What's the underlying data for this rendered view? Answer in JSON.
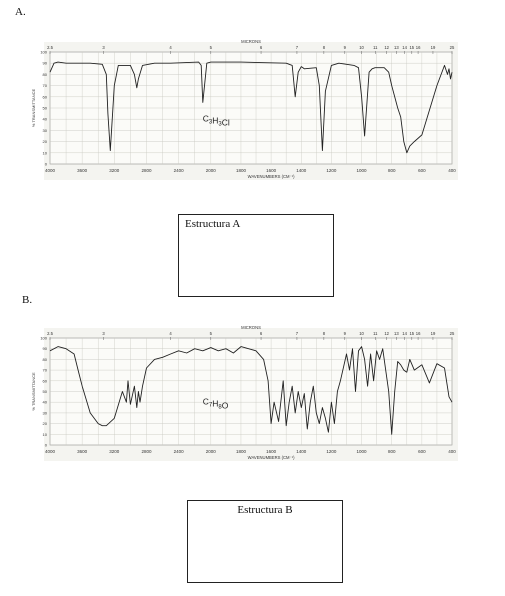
{
  "labels": {
    "a": "A.",
    "b": "B."
  },
  "boxes": {
    "a": "Estructura A",
    "b": "Estructura B"
  },
  "chart_data": [
    {
      "type": "line",
      "formula": "C3H3Cl",
      "xlabel": "WAVENUMBERS (CM⁻¹)",
      "ylabel": "% TRANSMITTANCE",
      "toplabel": "MICRONS",
      "xlim": [
        4000,
        400
      ],
      "ylim": [
        0,
        100
      ],
      "x_ticks": [
        "4000",
        "3600",
        "3200",
        "2800",
        "2400",
        "2000",
        "1800",
        "1600",
        "1400",
        "1200",
        "1000",
        "800",
        "600",
        "400"
      ],
      "micron_ticks": [
        "2.5",
        "3",
        "4",
        "5",
        "6",
        "7",
        "8",
        "9",
        "10",
        "11",
        "12",
        "13",
        "14",
        "15",
        "16",
        "19",
        "25"
      ],
      "y_ticks": [
        "100",
        "90",
        "80",
        "70",
        "60",
        "50",
        "40",
        "30",
        "20",
        "10",
        "0"
      ],
      "x": [
        4000,
        3950,
        3900,
        3800,
        3500,
        3350,
        3300,
        3280,
        3250,
        3200,
        3150,
        3000,
        2950,
        2920,
        2900,
        2850,
        2700,
        2500,
        2150,
        2120,
        2100,
        2050,
        2000,
        1800,
        1500,
        1460,
        1440,
        1420,
        1400,
        1380,
        1300,
        1280,
        1260,
        1240,
        1200,
        1150,
        1100,
        1050,
        1020,
        1000,
        980,
        950,
        930,
        910,
        850,
        820,
        800,
        780,
        760,
        740,
        720,
        700,
        680,
        650,
        600,
        500,
        450,
        430,
        420,
        410,
        400
      ],
      "y": [
        82,
        90,
        91,
        90,
        90,
        89,
        80,
        45,
        12,
        70,
        88,
        88,
        80,
        68,
        76,
        88,
        90,
        90,
        91,
        88,
        55,
        90,
        91,
        91,
        90,
        88,
        60,
        82,
        87,
        85,
        86,
        70,
        12,
        65,
        88,
        90,
        89,
        88,
        86,
        60,
        25,
        82,
        85,
        86,
        86,
        82,
        70,
        60,
        50,
        42,
        20,
        10,
        16,
        20,
        26,
        70,
        88,
        80,
        85,
        76,
        82
      ]
    },
    {
      "type": "line",
      "formula": "C7H8O",
      "xlabel": "WAVENUMBERS (CM⁻¹)",
      "ylabel": "% TRANSMITTANCE",
      "toplabel": "MICRONS",
      "xlim": [
        4000,
        400
      ],
      "ylim": [
        0,
        100
      ],
      "x_ticks": [
        "4000",
        "3600",
        "3200",
        "2800",
        "2400",
        "2000",
        "1800",
        "1600",
        "1400",
        "1200",
        "1000",
        "800",
        "600",
        "400"
      ],
      "micron_ticks": [
        "2.5",
        "3",
        "4",
        "5",
        "6",
        "7",
        "8",
        "9",
        "10",
        "11",
        "12",
        "13",
        "14",
        "15",
        "16",
        "19",
        "25"
      ],
      "y_ticks": [
        "100",
        "90",
        "80",
        "70",
        "60",
        "50",
        "40",
        "30",
        "20",
        "10",
        "0"
      ],
      "x": [
        4000,
        3900,
        3800,
        3700,
        3650,
        3600,
        3500,
        3400,
        3350,
        3300,
        3200,
        3100,
        3050,
        3030,
        3000,
        2950,
        2920,
        2900,
        2880,
        2850,
        2800,
        2700,
        2600,
        2500,
        2400,
        2300,
        2200,
        2100,
        2000,
        1950,
        1900,
        1850,
        1800,
        1750,
        1700,
        1650,
        1620,
        1600,
        1580,
        1550,
        1520,
        1500,
        1480,
        1460,
        1440,
        1420,
        1400,
        1380,
        1360,
        1340,
        1320,
        1300,
        1280,
        1260,
        1240,
        1220,
        1200,
        1180,
        1160,
        1140,
        1100,
        1080,
        1060,
        1040,
        1020,
        1000,
        980,
        960,
        940,
        920,
        900,
        880,
        860,
        820,
        800,
        780,
        760,
        740,
        720,
        700,
        680,
        650,
        600,
        550,
        500,
        450,
        420,
        400
      ],
      "y": [
        88,
        92,
        90,
        85,
        70,
        55,
        30,
        20,
        18,
        18,
        25,
        50,
        40,
        60,
        38,
        55,
        35,
        50,
        40,
        55,
        72,
        80,
        82,
        85,
        88,
        86,
        90,
        88,
        91,
        88,
        90,
        86,
        92,
        90,
        88,
        80,
        60,
        20,
        40,
        22,
        60,
        18,
        40,
        55,
        30,
        50,
        35,
        48,
        15,
        40,
        55,
        30,
        20,
        35,
        25,
        12,
        40,
        20,
        50,
        60,
        85,
        70,
        90,
        50,
        88,
        92,
        80,
        55,
        85,
        60,
        88,
        80,
        90,
        50,
        10,
        50,
        78,
        75,
        70,
        68,
        80,
        70,
        75,
        58,
        76,
        72,
        45,
        40
      ]
    }
  ]
}
